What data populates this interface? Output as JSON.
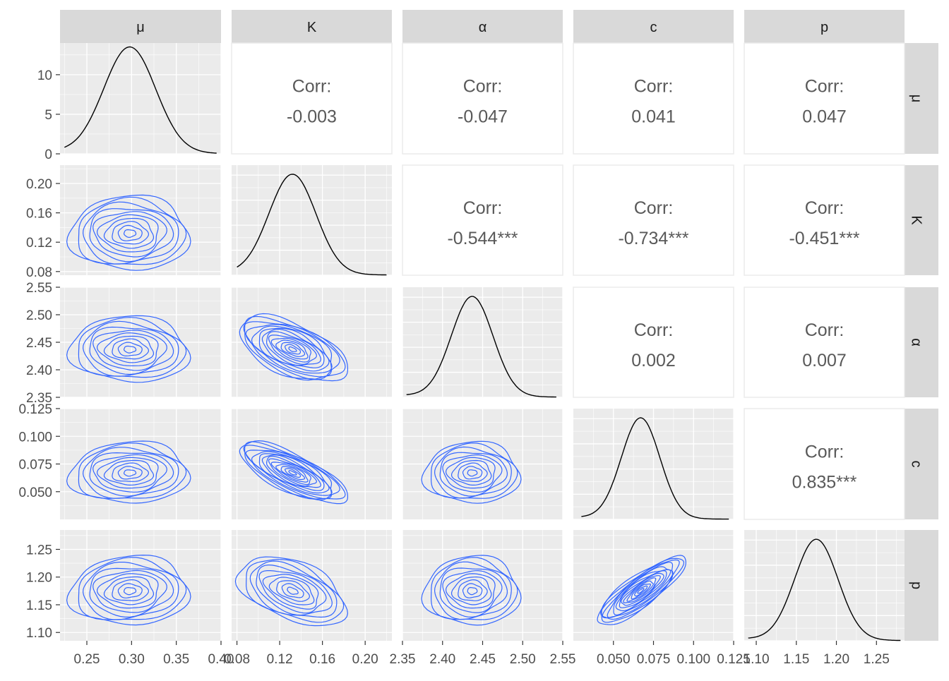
{
  "chart_data": {
    "type": "scatter",
    "variables": [
      "μ",
      "K",
      "α",
      "c",
      "p"
    ],
    "strip_labels": [
      "μ",
      "K",
      "α",
      "c",
      "p"
    ],
    "ranges": [
      [
        0.22,
        0.4
      ],
      [
        0.075,
        0.225
      ],
      [
        2.35,
        2.55
      ],
      [
        0.025,
        0.125
      ],
      [
        1.085,
        1.285
      ]
    ],
    "ticks": [
      {
        "values": [
          0.25,
          0.3,
          0.35,
          0.4
        ],
        "labels": [
          "0.25",
          "0.30",
          "0.35",
          "0.40"
        ]
      },
      {
        "values": [
          0.08,
          0.12,
          0.16,
          0.2
        ],
        "labels": [
          "0.08",
          "0.12",
          "0.16",
          "0.20"
        ]
      },
      {
        "values": [
          2.35,
          2.4,
          2.45,
          2.5,
          2.55
        ],
        "labels": [
          "2.35",
          "2.40",
          "2.45",
          "2.50",
          "2.55"
        ]
      },
      {
        "values": [
          0.05,
          0.075,
          0.1,
          0.125
        ],
        "labels": [
          "0.050",
          "0.075",
          "0.100",
          "0.125"
        ]
      },
      {
        "values": [
          1.1,
          1.15,
          1.2,
          1.25
        ],
        "labels": [
          "1.10",
          "1.15",
          "1.20",
          "1.25"
        ]
      }
    ],
    "density_yaxis": {
      "range": [
        0,
        14
      ],
      "values": [
        0,
        5,
        10
      ],
      "labels": [
        "0",
        "5",
        "10"
      ]
    },
    "corr_label": "Corr:",
    "correlations": [
      {
        "row": 0,
        "col": 1,
        "value": "-0.003"
      },
      {
        "row": 0,
        "col": 2,
        "value": "-0.047"
      },
      {
        "row": 0,
        "col": 3,
        "value": "0.041"
      },
      {
        "row": 0,
        "col": 4,
        "value": "0.047"
      },
      {
        "row": 1,
        "col": 2,
        "value": "-0.544***"
      },
      {
        "row": 1,
        "col": 3,
        "value": "-0.734***"
      },
      {
        "row": 1,
        "col": 4,
        "value": "-0.451***"
      },
      {
        "row": 2,
        "col": 3,
        "value": "0.002"
      },
      {
        "row": 2,
        "col": 4,
        "value": "0.007"
      },
      {
        "row": 3,
        "col": 4,
        "value": "0.835***"
      }
    ],
    "densities": [
      {
        "var": 0,
        "mean": 0.298,
        "sd": 0.029,
        "lo": 0.225,
        "hi": 0.395
      },
      {
        "var": 1,
        "mean": 0.132,
        "sd": 0.022,
        "lo": 0.08,
        "hi": 0.22
      },
      {
        "var": 2,
        "mean": 2.437,
        "sd": 0.026,
        "lo": 2.355,
        "hi": 2.542
      },
      {
        "var": 3,
        "mean": 0.067,
        "sd": 0.012,
        "lo": 0.03,
        "hi": 0.122
      },
      {
        "var": 4,
        "mean": 1.175,
        "sd": 0.027,
        "lo": 1.09,
        "hi": 1.28
      }
    ],
    "contour_color": "#3366FF",
    "density_color": "#000000",
    "panel_bg": "#EBEBEB",
    "strip_bg": "#D9D9D9",
    "grid": true
  }
}
